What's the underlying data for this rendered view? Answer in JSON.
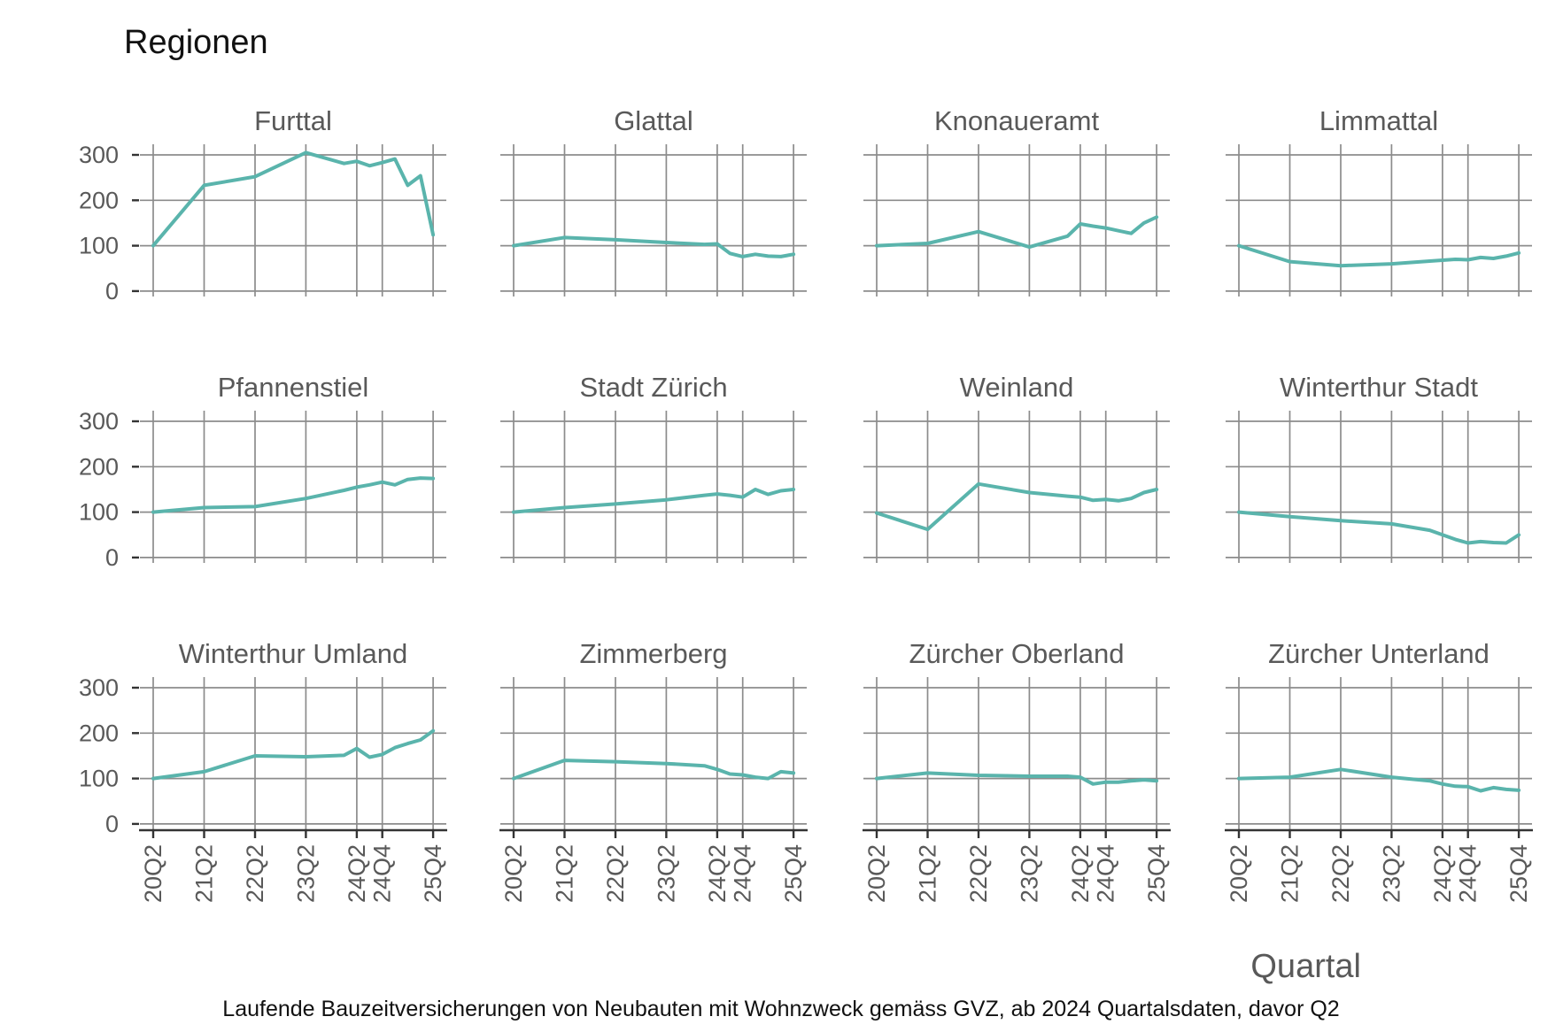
{
  "title": "Regionen",
  "axis": {
    "x_label": "Quartal"
  },
  "caption": "Laufende Bauzeitversicherungen von Neubauten mit Wohnzweck gemäss GVZ, ab 2024 Quartalsdaten, davor Q2",
  "colors": {
    "line": "#5ab4ac",
    "grid": "#8c8c8c",
    "axis_text": "#595959",
    "axis_line": "#333333",
    "title_text": "#111111"
  },
  "chart_data": {
    "type": "line",
    "title": "Regionen",
    "xlabel": "Quartal",
    "facet_grid": {
      "rows": 3,
      "cols": 4
    },
    "x_categories": [
      "20Q2",
      "21Q2",
      "22Q2",
      "23Q2",
      "24Q1",
      "24Q2",
      "24Q3",
      "24Q4",
      "25Q1",
      "25Q2",
      "25Q3",
      "25Q4"
    ],
    "x_quarter_offsets": [
      0,
      4,
      8,
      12,
      15,
      16,
      17,
      18,
      19,
      20,
      21,
      22
    ],
    "x_tick_labels": [
      "20Q2",
      "21Q2",
      "22Q2",
      "23Q2",
      "24Q2",
      "24Q4",
      "25Q4"
    ],
    "x_tick_offsets": [
      0,
      4,
      8,
      12,
      16,
      18,
      22
    ],
    "y_axis_ticks": [
      300,
      200,
      100,
      0
    ],
    "ylim": [
      -15,
      320
    ],
    "grid": true,
    "legend": "none",
    "series": [
      {
        "name": "Furttal",
        "values": [
          100,
          233,
          252,
          305,
          281,
          286,
          276,
          283,
          291,
          233,
          254,
          124
        ]
      },
      {
        "name": "Glattal",
        "values": [
          100,
          118,
          113,
          107,
          103,
          104,
          83,
          76,
          81,
          77,
          76,
          81
        ]
      },
      {
        "name": "Knonaueramt",
        "values": [
          100,
          105,
          131,
          97,
          121,
          148,
          143,
          139,
          133,
          127,
          150,
          163
        ]
      },
      {
        "name": "Limmattal",
        "values": [
          100,
          65,
          56,
          60,
          66,
          68,
          70,
          69,
          74,
          72,
          77,
          84
        ]
      },
      {
        "name": "Pfannenstiel",
        "values": [
          100,
          110,
          112,
          130,
          148,
          155,
          160,
          166,
          160,
          172,
          175,
          174
        ]
      },
      {
        "name": "Stadt Zürich",
        "values": [
          100,
          110,
          118,
          127,
          137,
          140,
          137,
          133,
          150,
          139,
          147,
          150
        ]
      },
      {
        "name": "Weinland",
        "values": [
          98,
          62,
          162,
          143,
          135,
          133,
          126,
          128,
          125,
          130,
          143,
          150
        ]
      },
      {
        "name": "Winterthur Stadt",
        "values": [
          100,
          90,
          81,
          74,
          60,
          50,
          40,
          32,
          35,
          33,
          32,
          50
        ]
      },
      {
        "name": "Winterthur Umland",
        "values": [
          100,
          115,
          150,
          148,
          151,
          166,
          147,
          153,
          168,
          177,
          185,
          205
        ]
      },
      {
        "name": "Zimmerberg",
        "values": [
          100,
          140,
          137,
          133,
          128,
          120,
          110,
          108,
          103,
          100,
          115,
          112
        ]
      },
      {
        "name": "Zürcher Oberland",
        "values": [
          100,
          112,
          107,
          105,
          105,
          103,
          88,
          92,
          92,
          95,
          97,
          95
        ]
      },
      {
        "name": "Zürcher Unterland",
        "values": [
          100,
          103,
          120,
          103,
          95,
          88,
          83,
          82,
          73,
          80,
          76,
          74
        ]
      }
    ]
  }
}
